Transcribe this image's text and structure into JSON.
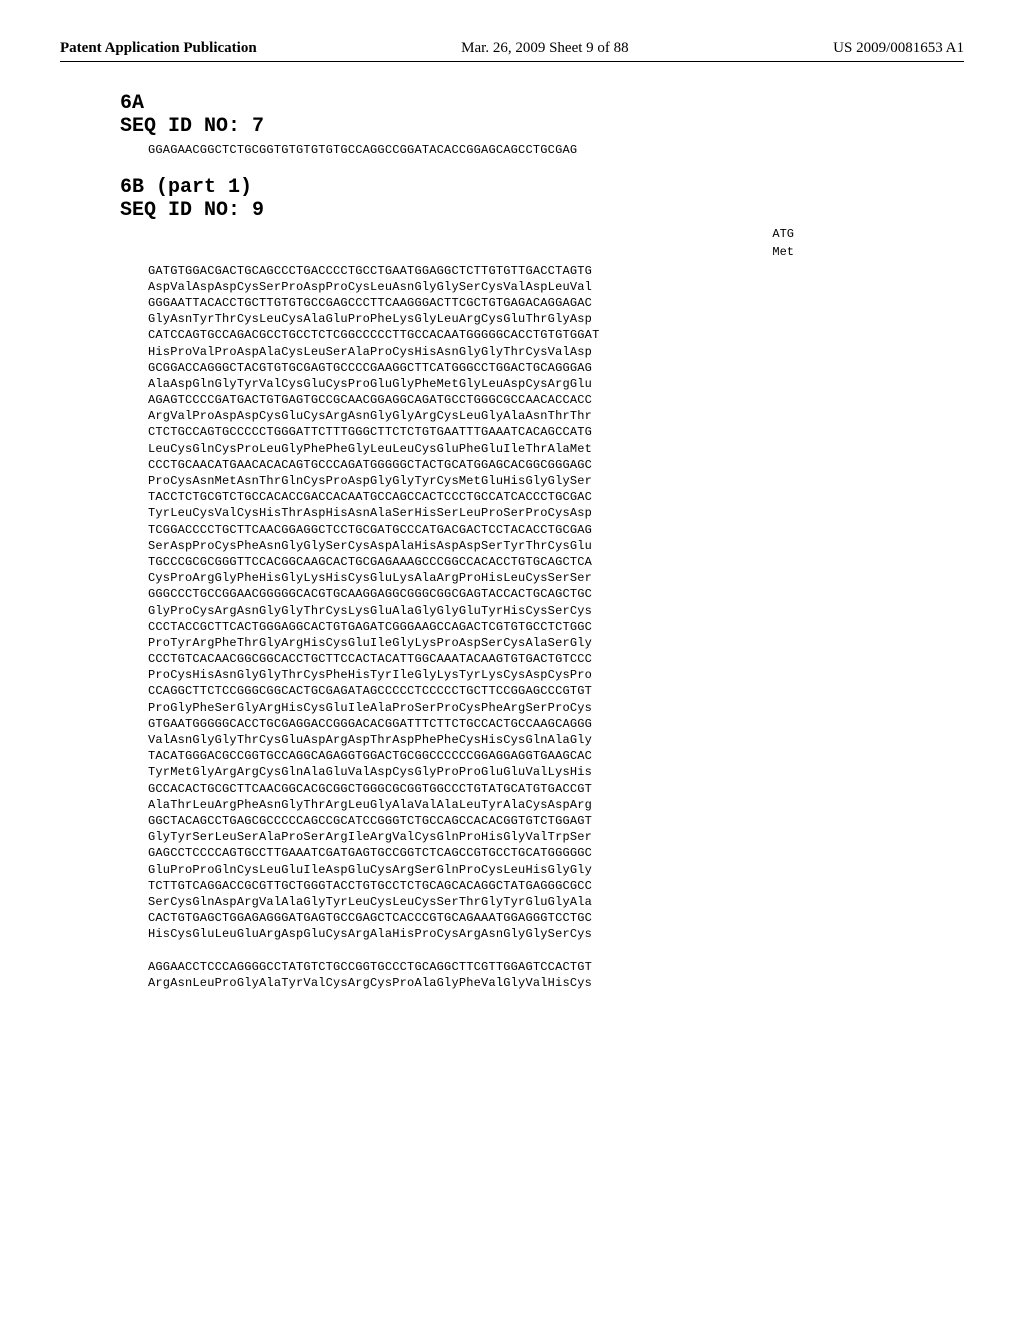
{
  "header": {
    "left": "Patent Application Publication",
    "mid": "Mar. 26, 2009  Sheet 9 of 88",
    "right": "US 2009/0081653 A1"
  },
  "section6A": {
    "label": "6A",
    "seqid": "SEQ ID NO: 7",
    "seq": "GGAGAACGGCTCTGCGGTGTGTGTGTGCCAGGCCGGATACACCGGAGCAGCCTGCGAG"
  },
  "section6B": {
    "label": "6B (part 1)",
    "seqid": "SEQ ID NO: 9",
    "lead1": "ATG",
    "lead2": "Met",
    "lines": [
      "GATGTGGACGACTGCAGCCCTGACCCCTGCCTGAATGGAGGCTCTTGTGTTGACCTAGTG",
      "AspValAspAspCysSerProAspProCysLeuAsnGlyGlySerCysValAspLeuVal",
      "GGGAATTACACCTGCTTGTGTGCCGAGCCCTTCAAGGGACTTCGCTGTGAGACAGGAGAC",
      "GlyAsnTyrThrCysLeuCysAlaGluProPheLysGlyLeuArgCysGluThrGlyAsp",
      "CATCCAGTGCCAGACGCCTGCCTCTCGGCCCCCTTGCCACAATGGGGGCACCTGTGTGGAT",
      "HisProValProAspAlaCysLeuSerAlaProCysHisAsnGlyGlyThrCysValAsp",
      "GCGGACCAGGGCTACGTGTGCGAGTGCCCCGAAGGCTTCATGGGCCTGGACTGCAGGGAG",
      "AlaAspGlnGlyTyrValCysGluCysProGluGlyPheMetGlyLeuAspCysArgGlu",
      "AGAGTCCCCGATGACTGTGAGTGCCGCAACGGAGGCAGATGCCTGGGCGCCAACACCACC",
      "ArgValProAspAspCysGluCysArgAsnGlyGlyArgCysLeuGlyAlaAsnThrThr",
      "CTCTGCCAGTGCCCCCTGGGATTCTTTGGGCTTCTCTGTGAATTTGAAATCACAGCCATG",
      "LeuCysGlnCysProLeuGlyPhePheGlyLeuLeuCysGluPheGluIleThrAlaMet",
      "CCCTGCAACATGAACACACAGTGCCCAGATGGGGGCTACTGCATGGAGCACGGCGGGAGC",
      "ProCysAsnMetAsnThrGlnCysProAspGlyGlyTyrCysMetGluHisGlyGlySer",
      "TACCTCTGCGTCTGCCACACCGACCACAATGCCAGCCACTCCCTGCCATCACCCTGCGAC",
      "TyrLeuCysValCysHisThrAspHisAsnAlaSerHisSerLeuProSerProCysAsp",
      "TCGGACCCCTGCTTCAACGGAGGCTCCTGCGATGCCCATGACGACTCCTACACCTGCGAG",
      "SerAspProCysPheAsnGlyGlySerCysAspAlaHisAspAspSerTyrThrCysGlu",
      "TGCCCGCGCGGGTTCCACGGCAAGCACTGCGAGAAAGCCCGGCCACACCTGTGCAGCTCA",
      "CysProArgGlyPheHisGlyLysHisCysGluLysAlaArgProHisLeuCysSerSer",
      "GGGCCCTGCCGGAACGGGGGCACGTGCAAGGAGGCGGGCGGCGAGTACCACTGCAGCTGC",
      "GlyProCysArgAsnGlyGlyThrCysLysGluAlaGlyGlyGluTyrHisCysSerCys",
      "CCCTACCGCTTCACTGGGAGGCACTGTGAGATCGGGAAGCCAGACTCGTGTGCCTCTGGC",
      "ProTyrArgPheThrGlyArgHisCysGluIleGlyLysProAspSerCysAlaSerGly",
      "CCCTGTCACAACGGCGGCACCTGCTTCCACTACATTGGCAAATACAAGTGTGACTGTCCC",
      "ProCysHisAsnGlyGlyThrCysPheHisTyrIleGlyLysTyrLysCysAspCysPro",
      "CCAGGCTTCTCCGGGCGGCACTGCGAGATAGCCCCCTCCCCCTGCTTCCGGAGCCCGTGT",
      "ProGlyPheSerGlyArgHisCysGluIleAlaProSerProCysPheArgSerProCys",
      "GTGAATGGGGGCACCTGCGAGGACCGGGACACGGATTTCTTCTGCCACTGCCAAGCAGGG",
      "ValAsnGlyGlyThrCysGluAspArgAspThrAspPhePheCysHisCysGlnAlaGly",
      "TACATGGGACGCCGGTGCCAGGCAGAGGTGGACTGCGGCCCCCCGGAGGAGGTGAAGCAC",
      "TyrMetGlyArgArgCysGlnAlaGluValAspCysGlyProProGluGluValLysHis",
      "GCCACACTGCGCTTCAACGGCACGCGGCTGGGCGCGGTGGCCCTGTATGCATGTGACCGT",
      "AlaThrLeuArgPheAsnGlyThrArgLeuGlyAlaValAlaLeuTyrAlaCysAspArg",
      "GGCTACAGCCTGAGCGCCCCCAGCCGCATCCGGGTCTGCCAGCCACACGGTGTCTGGAGT",
      "GlyTyrSerLeuSerAlaProSerArgIleArgValCysGlnProHisGlyValTrpSer",
      "GAGCCTCCCCAGTGCCTTGAAATCGATGAGTGCCGGTCTCAGCCGTGCCTGCATGGGGGC",
      "GluProProGlnCysLeuGluIleAspGluCysArgSerGlnProCysLeuHisGlyGly",
      "TCTTGTCAGGACCGCGTTGCTGGGTACCTGTGCCTCTGCAGCACAGGCTATGAGGGCGCC",
      "SerCysGlnAspArgValAlaGlyTyrLeuCysLeuCysSerThrGlyTyrGluGlyAla",
      "CACTGTGAGCTGGAGAGGGATGAGTGCCGAGCTCACCCGTGCAGAAATGGAGGGTCCTGC",
      "HisCysGluLeuGluArgAspGluCysArgAlaHisProCysArgAsnGlyGlySerCys",
      "",
      "AGGAACCTCCCAGGGGCCTATGTCTGCCGGTGCCCTGCAGGCTTCGTTGGAGTCCACTGT",
      "ArgAsnLeuProGlyAlaTyrValCysArgCysProAlaGlyPheValGlyValHisCys"
    ]
  }
}
